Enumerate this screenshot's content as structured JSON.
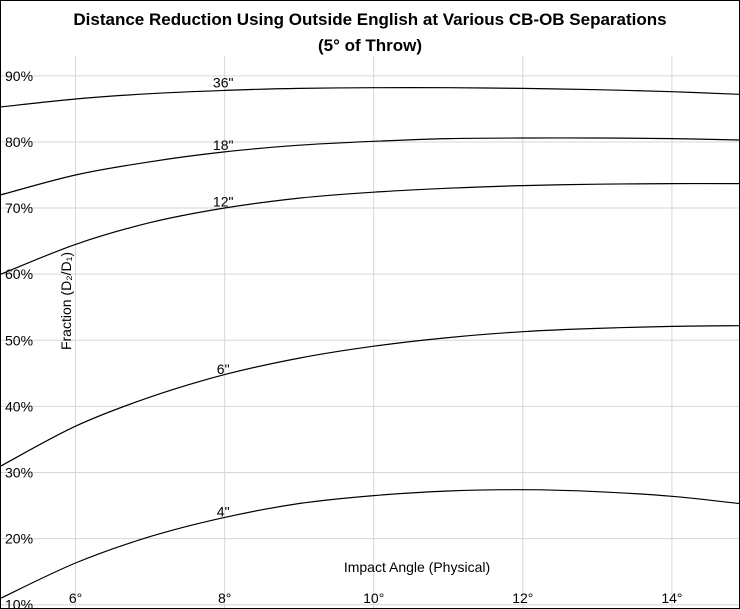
{
  "chart_data": {
    "type": "line",
    "title": "Distance Reduction Using Outside English at Various CB-OB Separations",
    "subtitle": "(5° of Throw)",
    "xlabel": "Impact Angle (Physical)",
    "ylabel": "Fraction (D₂/D₁)",
    "xlim": [
      5.0,
      14.9
    ],
    "ylim": [
      0.095,
      0.93
    ],
    "x_ticks": [
      6,
      8,
      10,
      12,
      14
    ],
    "x_tick_labels": [
      "6°",
      "8°",
      "10°",
      "12°",
      "14°"
    ],
    "y_ticks": [
      0.1,
      0.2,
      0.3,
      0.4,
      0.5,
      0.6,
      0.7,
      0.8,
      0.9
    ],
    "y_tick_labels": [
      "10%",
      "20%",
      "30%",
      "40%",
      "50%",
      "60%",
      "70%",
      "80%",
      "90%"
    ],
    "grid": true,
    "x": [
      5,
      6,
      7,
      8,
      9,
      10,
      11,
      12,
      13,
      14,
      14.9
    ],
    "series": [
      {
        "name": "36\"",
        "label_x": 7.9,
        "values": [
          0.853,
          0.865,
          0.873,
          0.878,
          0.881,
          0.882,
          0.882,
          0.881,
          0.879,
          0.876,
          0.872
        ]
      },
      {
        "name": "18\"",
        "label_x": 7.9,
        "values": [
          0.72,
          0.75,
          0.77,
          0.785,
          0.795,
          0.801,
          0.805,
          0.806,
          0.806,
          0.805,
          0.803
        ]
      },
      {
        "name": "12\"",
        "label_x": 7.9,
        "values": [
          0.6,
          0.645,
          0.678,
          0.7,
          0.715,
          0.724,
          0.73,
          0.734,
          0.736,
          0.737,
          0.737
        ]
      },
      {
        "name": "6\"",
        "label_x": 7.9,
        "values": [
          0.31,
          0.37,
          0.414,
          0.448,
          0.473,
          0.491,
          0.504,
          0.513,
          0.518,
          0.521,
          0.522
        ]
      },
      {
        "name": "4\"",
        "label_x": 7.9,
        "values": [
          0.11,
          0.163,
          0.203,
          0.232,
          0.253,
          0.265,
          0.272,
          0.274,
          0.271,
          0.264,
          0.253
        ]
      }
    ]
  }
}
